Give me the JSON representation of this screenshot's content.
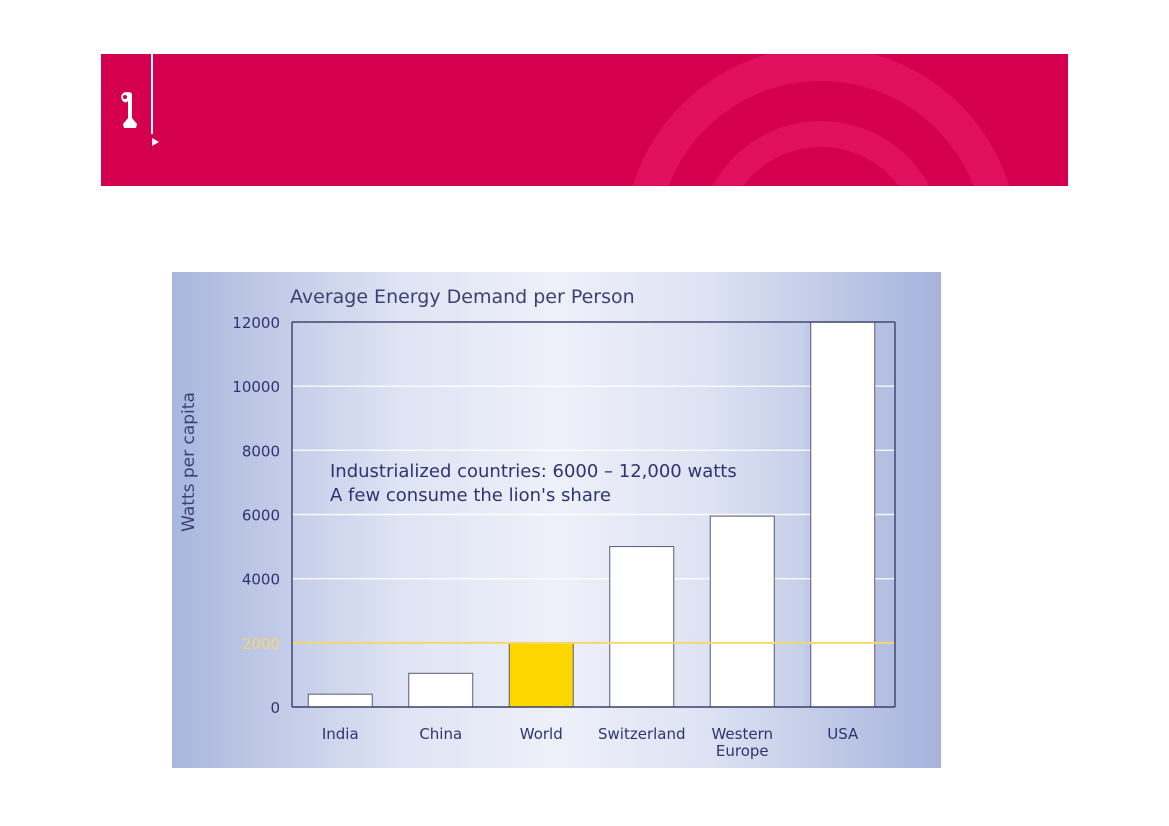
{
  "colors": {
    "banner": "#d4004f",
    "highlight_bar": "#ffd700",
    "reference_line": "#f5d76e",
    "title_text": "#3b4270",
    "axis_text": "#2e3470"
  },
  "chart_data": {
    "type": "bar",
    "title": "Average Energy Demand per Person",
    "ylabel": "Watts per capita",
    "xlabel": "",
    "ylim": [
      0,
      12000
    ],
    "yticks": [
      "0",
      "2000",
      "4000",
      "6000",
      "8000",
      "10000",
      "12000"
    ],
    "ytick_values": [
      0,
      2000,
      4000,
      6000,
      8000,
      10000,
      12000
    ],
    "categories": [
      [
        "India"
      ],
      [
        "China"
      ],
      [
        "World"
      ],
      [
        "Switzerland"
      ],
      [
        "Western",
        "Europe"
      ],
      [
        "USA"
      ]
    ],
    "values": [
      400,
      1050,
      2000,
      5000,
      5950,
      12000
    ],
    "highlight": [
      false,
      false,
      true,
      false,
      false,
      false
    ],
    "reference_line": 2000,
    "annotation": [
      "Industrialized countries: 6000 – 12,000 watts",
      "A few consume the lion's share"
    ],
    "grid": true
  }
}
